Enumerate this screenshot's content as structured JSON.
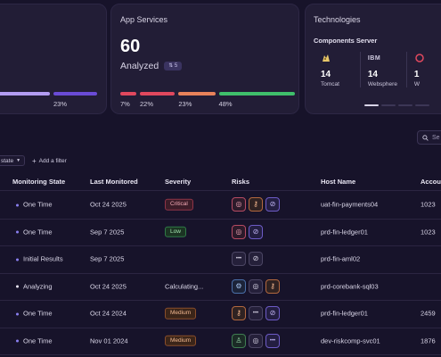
{
  "left_card": {
    "percent": "23%"
  },
  "app_services": {
    "title": "App Services",
    "count": "60",
    "label": "Analyzed",
    "badge": "5",
    "segments": [
      {
        "pct": "7%",
        "value": 7,
        "color": "#e0485e"
      },
      {
        "pct": "22%",
        "value": 22,
        "color": "#e0485e"
      },
      {
        "pct": "23%",
        "value": 23,
        "color": "#e8825a"
      },
      {
        "pct": "48%",
        "value": 48,
        "color": "#3fbf6b"
      }
    ]
  },
  "technologies": {
    "title": "Technologies",
    "subtitle": "Components Server",
    "items": [
      {
        "logo": "tomcat-icon",
        "count": "14",
        "name": "Tomcat"
      },
      {
        "logo": "IBM",
        "count": "14",
        "name": "Websphere"
      },
      {
        "logo": "",
        "count": "1",
        "name": "W"
      }
    ]
  },
  "filters": {
    "state_chip": "state",
    "add_filter": "Add a filter",
    "search_placeholder": "Se"
  },
  "table": {
    "columns": [
      "Monitoring State",
      "Last Monitored",
      "Severity",
      "Risks",
      "Host Name",
      "Accou"
    ],
    "rows": [
      {
        "state": "One Time",
        "state_color": "#8a7ff0",
        "date": "Oct 24 2025",
        "severity": "Critical",
        "sev": "critical",
        "risks": [
          "r-red:◎",
          "r-orange:⚷",
          "r-purple:⊘"
        ],
        "host": "uat-fin-payments04",
        "account": "1023"
      },
      {
        "state": "One Time",
        "state_color": "#8a7ff0",
        "date": "Sep 7 2025",
        "severity": "Low",
        "sev": "low",
        "risks": [
          "r-red:◎",
          "r-purple:⊘"
        ],
        "host": "prd-fin-ledger01",
        "account": "1023"
      },
      {
        "state": "Initial Results",
        "state_color": "#8a7ff0",
        "date": "Sep 7 2025",
        "severity": "",
        "sev": "",
        "risks": [
          "r-grey:•••",
          "r-grey:⊘"
        ],
        "host": "prd-fin-aml02",
        "account": ""
      },
      {
        "state": "Analyzing",
        "state_color": "#e7e4f2",
        "date": "Oct 24 2025",
        "severity": "Calculating...",
        "sev": "text",
        "risks": [
          "r-cyan:⚙",
          "r-grey:◎",
          "r-orange:⚷"
        ],
        "host": "prd-corebank-sql03",
        "account": ""
      },
      {
        "state": "One Time",
        "state_color": "#8a7ff0",
        "date": "Oct 24 2024",
        "severity": "Medium",
        "sev": "medium",
        "risks": [
          "r-orange:⚷",
          "r-grey:•••",
          "r-purple:⊘"
        ],
        "host": "prd-fin-ledger01",
        "account": "2459"
      },
      {
        "state": "One Time",
        "state_color": "#8a7ff0",
        "date": "Nov 01 2024",
        "severity": "Medium",
        "sev": "medium",
        "risks": [
          "r-green:♙",
          "r-grey:◎",
          "r-purple:•••"
        ],
        "host": "dev-riskcomp-svc01",
        "account": "1876"
      }
    ]
  }
}
